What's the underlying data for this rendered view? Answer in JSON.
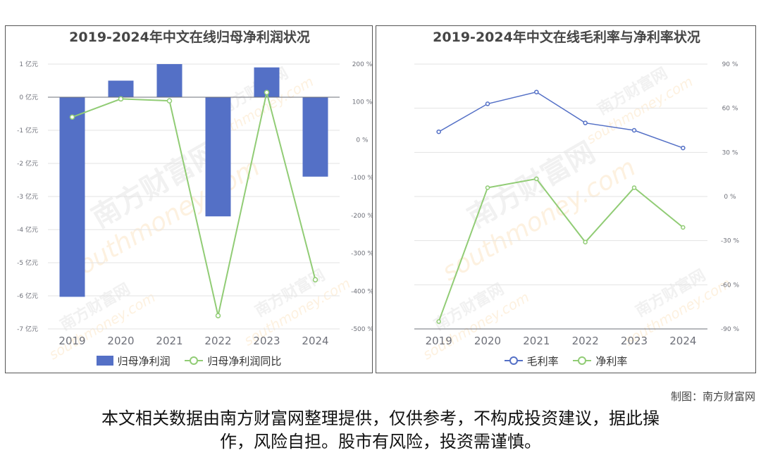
{
  "watermark": {
    "cn": "南方财富网",
    "en": "southmoney.com"
  },
  "credit": "制图：南方财富网",
  "disclaimer": {
    "line1": "本文相关数据由南方财富网整理提供，仅供参考，不构成投资建议，据此操",
    "line2": "作，风险自担。股市有风险，投资需谨慎。"
  },
  "colors": {
    "bar": "#5470c6",
    "green": "#91cc75",
    "blue": "#5470c6",
    "grid": "#e3e3e3",
    "axis": "#6e7079"
  },
  "chart_data": [
    {
      "type": "bar",
      "title": "2019-2024年中文在线归母净利润状况",
      "categories": [
        "2019",
        "2020",
        "2021",
        "2022",
        "2023",
        "2024"
      ],
      "series": [
        {
          "name": "归母净利润",
          "type": "bar",
          "axis": "left",
          "unit": "亿元",
          "values": [
            -6.03,
            0.5,
            1.0,
            -3.6,
            0.9,
            -2.4
          ]
        },
        {
          "name": "归母净利润同比",
          "type": "line",
          "axis": "right",
          "unit": "%",
          "values": [
            60,
            108,
            103,
            -465,
            125,
            -370
          ]
        }
      ],
      "left_axis": {
        "min": -7,
        "max": 1,
        "ticks": [
          1,
          0,
          -1,
          -2,
          -3,
          -4,
          -5,
          -6,
          -7
        ],
        "labels": [
          "1 亿元",
          "0 亿元",
          "-1 亿元",
          "-2 亿元",
          "-3 亿元",
          "-4 亿元",
          "-5 亿元",
          "-6 亿元",
          "-7 亿元"
        ]
      },
      "right_axis": {
        "min": -500,
        "max": 200,
        "ticks": [
          200,
          100,
          0,
          -100,
          -200,
          -300,
          -400,
          -500
        ],
        "labels": [
          "200 %",
          "100 %",
          "0 %",
          "-100 %",
          "-200 %",
          "-300 %",
          "-400 %",
          "-500 %"
        ]
      },
      "legend": [
        "归母净利润",
        "归母净利润同比"
      ],
      "legend_position": "bottom",
      "grid": true
    },
    {
      "type": "line",
      "title": "2019-2024年中文在线毛利率与净利率状况",
      "categories": [
        "2019",
        "2020",
        "2021",
        "2022",
        "2023",
        "2024"
      ],
      "series": [
        {
          "name": "毛利率",
          "unit": "%",
          "values": [
            44,
            63,
            71,
            50,
            45,
            33
          ]
        },
        {
          "name": "净利率",
          "unit": "%",
          "values": [
            -85,
            6,
            12,
            -31,
            6,
            -21
          ]
        }
      ],
      "right_axis": {
        "min": -90,
        "max": 90,
        "ticks": [
          90,
          60,
          30,
          0,
          -30,
          -60,
          -90
        ],
        "labels": [
          "90 %",
          "60 %",
          "30 %",
          "0 %",
          "-30 %",
          "-60 %",
          "-90 %"
        ]
      },
      "legend": [
        "毛利率",
        "净利率"
      ],
      "legend_position": "bottom",
      "grid": true
    }
  ]
}
